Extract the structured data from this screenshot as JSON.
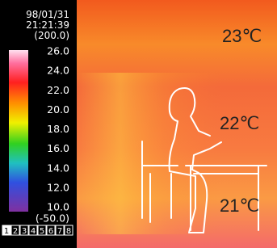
{
  "header": {
    "date": "98/01/31",
    "time": "21:21:39",
    "range_top": "(200.0)"
  },
  "scale": {
    "labels": [
      "26.0",
      "24.0",
      "22.0",
      "20.0",
      "18.0",
      "16.0",
      "14.0",
      "12.0",
      "10.0"
    ],
    "range_bottom": "(-50.0)"
  },
  "channels": [
    "1",
    "2",
    "3",
    "4",
    "5",
    "6",
    "7",
    "8"
  ],
  "annotations": [
    "23℃",
    "22℃",
    "21℃"
  ]
}
